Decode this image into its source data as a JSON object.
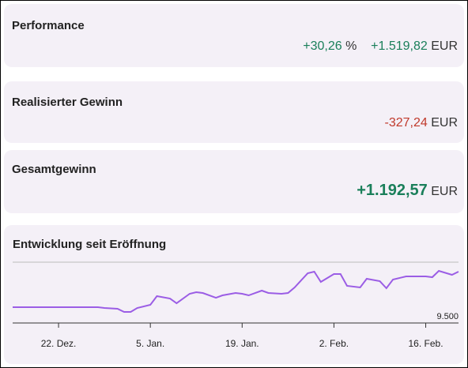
{
  "performance": {
    "title": "Performance",
    "percent": "+30,26",
    "percent_unit": "%",
    "amount": "+1.519,82",
    "currency": "EUR"
  },
  "realized": {
    "title": "Realisierter Gewinn",
    "amount": "-327,24",
    "currency": "EUR"
  },
  "total": {
    "title": "Gesamtgewinn",
    "amount": "+1.192,57",
    "currency": "EUR"
  },
  "chart_data": {
    "type": "line",
    "title": "Entwicklung seit Eröffnung",
    "x": [
      0,
      13,
      14,
      16,
      17,
      18,
      19,
      21,
      22,
      24,
      25,
      27,
      28,
      29,
      31,
      32,
      34,
      35,
      36,
      38,
      39,
      41,
      42,
      43,
      45,
      46,
      47,
      49,
      50,
      51,
      53,
      54,
      56,
      57,
      58,
      60,
      61,
      63,
      64,
      65,
      67,
      68
    ],
    "values": [
      10019,
      10019,
      9993,
      9967,
      9864,
      9864,
      9993,
      10097,
      10383,
      10305,
      10149,
      10461,
      10513,
      10487,
      10331,
      10409,
      10487,
      10461,
      10409,
      10565,
      10487,
      10461,
      10487,
      10669,
      11136,
      11188,
      10850,
      11110,
      11110,
      10721,
      10669,
      10954,
      10876,
      10643,
      10928,
      11032,
      11032,
      11032,
      11006,
      11214,
      11084,
      11188
    ],
    "color": "#9b5de5",
    "xlim": [
      0,
      68
    ],
    "xticks": [
      {
        "value": 7,
        "label": "22. Dez."
      },
      {
        "value": 21,
        "label": "5. Jan."
      },
      {
        "value": 35,
        "label": "19. Jan."
      },
      {
        "value": 49,
        "label": "2. Feb."
      },
      {
        "value": 63,
        "label": "16. Feb."
      }
    ],
    "ylim": [
      9500,
      11500
    ],
    "yticks": [
      {
        "value": 9500,
        "label": "9.500"
      }
    ]
  }
}
